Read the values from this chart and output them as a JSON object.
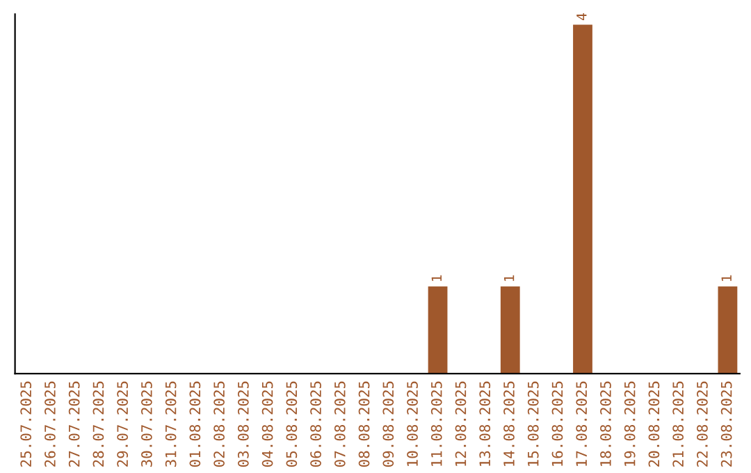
{
  "chart_data": {
    "type": "bar",
    "categories": [
      "25.07.2025",
      "26.07.2025",
      "27.07.2025",
      "28.07.2025",
      "29.07.2025",
      "30.07.2025",
      "31.07.2025",
      "01.08.2025",
      "02.08.2025",
      "03.08.2025",
      "04.08.2025",
      "05.08.2025",
      "06.08.2025",
      "07.08.2025",
      "08.08.2025",
      "09.08.2025",
      "10.08.2025",
      "11.08.2025",
      "12.08.2025",
      "13.08.2025",
      "14.08.2025",
      "15.08.2025",
      "16.08.2025",
      "17.08.2025",
      "18.08.2025",
      "19.08.2025",
      "20.08.2025",
      "21.08.2025",
      "22.08.2025",
      "23.08.2025"
    ],
    "values": [
      null,
      null,
      null,
      null,
      null,
      null,
      null,
      null,
      null,
      null,
      null,
      null,
      null,
      null,
      null,
      null,
      null,
      1,
      null,
      null,
      1,
      null,
      null,
      4,
      null,
      null,
      null,
      null,
      null,
      1
    ],
    "data_labels": true,
    "color": "#a0582c",
    "tick_labels": "x",
    "grid": false,
    "legend": false
  }
}
